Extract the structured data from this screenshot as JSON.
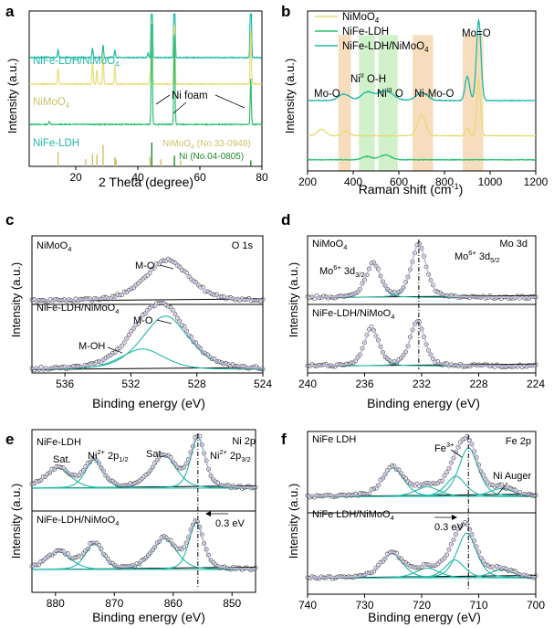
{
  "colors": {
    "teal": "#1fb8a6",
    "yellow": "#e8dc74",
    "green": "#2fbf6e",
    "darkgreen": "#1e8a2a",
    "gold": "#cfc06a",
    "peak": "#c7b8e0",
    "orange_band": "#f5d7b3",
    "green_band": "#c8efc0",
    "circle": "#555555",
    "black": "#000000"
  },
  "chart_data": [
    {
      "id": "a",
      "type": "line",
      "panel_label": "a",
      "xlabel": "2 Theta (degree)",
      "ylabel": "Intensity (a.u.)",
      "xlim": [
        5,
        80
      ],
      "xticks": [
        20,
        40,
        60,
        80
      ],
      "xtick_labels": [
        "20",
        "40",
        "60",
        "80"
      ],
      "series": [
        {
          "name": "NiFe-LDH/NiMoO4",
          "label": "NiFe-LDH/NiMoO",
          "sub": "4",
          "color": "teal",
          "baseline": 0.3,
          "peaks": [
            [
              14.3,
              0.05
            ],
            [
              25.4,
              0.06
            ],
            [
              28.8,
              0.08
            ],
            [
              32.6,
              0.05
            ],
            [
              43.3,
              0.03
            ],
            [
              44.5,
              0.65
            ],
            [
              51.8,
              0.65
            ],
            [
              76.4,
              0.65
            ]
          ]
        },
        {
          "name": "NiMoO4",
          "label": "NiMoO",
          "sub": "4",
          "color": "yellow",
          "baseline": 0.47,
          "peaks": [
            [
              14.3,
              0.1
            ],
            [
              25.4,
              0.14
            ],
            [
              26.8,
              0.09
            ],
            [
              28.8,
              0.2
            ],
            [
              32.6,
              0.12
            ],
            [
              43.9,
              0.06
            ],
            [
              44.5,
              0.4
            ],
            [
              51.8,
              0.4
            ],
            [
              76.4,
              0.35
            ]
          ]
        },
        {
          "name": "NiFe-LDH",
          "label": "NiFe-LDH",
          "sub": "",
          "color": "green",
          "baseline": 0.73,
          "peaks": [
            [
              11.5,
              0.02
            ],
            [
              44.5,
              0.65
            ],
            [
              51.8,
              0.6
            ],
            [
              76.4,
              0.3
            ]
          ]
        }
      ],
      "reference_sticks": [
        {
          "name": "NiMoO4 (No.33-0948)",
          "label": "NiMoO",
          "sub": "4",
          "suffix": " (No.33-0948)",
          "color": "gold",
          "positions": [
            [
              14.3,
              0.6
            ],
            [
              23.2,
              0.3
            ],
            [
              25.4,
              0.5
            ],
            [
              26.8,
              0.5
            ],
            [
              28.8,
              0.9
            ],
            [
              32.6,
              0.4
            ],
            [
              33.0,
              0.3
            ],
            [
              43.9,
              0.4
            ],
            [
              47.4,
              0.3
            ],
            [
              53.8,
              0.25
            ]
          ]
        },
        {
          "name": "Ni (No.04-0805)",
          "label": "Ni (No.04-0805)",
          "sub": "",
          "suffix": "",
          "color": "darkgreen",
          "positions": [
            [
              44.5,
              1.0
            ],
            [
              51.8,
              0.45
            ],
            [
              76.4,
              0.25
            ]
          ]
        }
      ],
      "annotations": [
        {
          "text": "Ni foam"
        }
      ]
    },
    {
      "id": "b",
      "type": "line",
      "panel_label": "b",
      "xlabel": "Raman shift (cm",
      "xlabel_sup": "-1",
      "xlabel_tail": ")",
      "ylabel": "Intensity (a.u.)",
      "xlim": [
        200,
        1200
      ],
      "xticks": [
        200,
        400,
        600,
        800,
        1000,
        1200
      ],
      "xtick_labels": [
        "200",
        "400",
        "600",
        "800",
        "1000",
        "1200"
      ],
      "legend": [
        {
          "label": "NiMoO",
          "sub": "4",
          "color": "yellow"
        },
        {
          "label": "NiFe-LDH",
          "sub": "",
          "color": "green"
        },
        {
          "label": "NiFe-LDH/NiMoO",
          "sub": "4",
          "color": "teal"
        }
      ],
      "series": [
        {
          "name": "NiFe-LDH/NiMoO4",
          "color": "teal",
          "baseline": 0.56,
          "peaks": [
            [
              360,
              0.04,
              25
            ],
            [
              460,
              0.05,
              25
            ],
            [
              540,
              0.06,
              35
            ],
            [
              700,
              0.05,
              25
            ],
            [
              900,
              0.15,
              10
            ],
            [
              950,
              0.5,
              10
            ]
          ]
        },
        {
          "name": "NiMoO4",
          "color": "yellow",
          "baseline": 0.78,
          "peaks": [
            [
              260,
              0.04,
              18
            ],
            [
              370,
              0.03,
              15
            ],
            [
              700,
              0.13,
              18
            ],
            [
              900,
              0.05,
              8
            ],
            [
              950,
              0.35,
              8
            ]
          ]
        },
        {
          "name": "NiFe-LDH",
          "color": "green",
          "baseline": 0.93,
          "peaks": [
            [
              460,
              0.02,
              20
            ],
            [
              540,
              0.03,
              25
            ]
          ]
        }
      ],
      "bands": [
        {
          "x0": 335,
          "x1": 390,
          "color": "orange_band"
        },
        {
          "x0": 425,
          "x1": 495,
          "color": "green_band"
        },
        {
          "x0": 510,
          "x1": 595,
          "color": "green_band"
        },
        {
          "x0": 660,
          "x1": 750,
          "color": "orange_band"
        },
        {
          "x0": 880,
          "x1": 970,
          "color": "orange_band"
        }
      ],
      "annotations": [
        {
          "text": "Mo-O"
        },
        {
          "text": "Ni",
          "tail": " O-H",
          "sup": "II"
        },
        {
          "text": "Ni",
          "tail": " O",
          "sup": "III"
        },
        {
          "text": "Ni-Mo-O"
        },
        {
          "text": "Mo=O"
        }
      ]
    },
    {
      "id": "c",
      "type": "scatter",
      "panel_label": "c",
      "xlabel": "Binding energy (eV)",
      "ylabel": "Intensity (a.u.)",
      "xlim": [
        538,
        524
      ],
      "xticks": [
        536,
        532,
        528,
        524
      ],
      "xtick_labels": [
        "536",
        "532",
        "528",
        "524"
      ],
      "subpanels": [
        {
          "title": "NiMoO",
          "title_sub": "4",
          "corner": "O 1s",
          "baseline": 0.95,
          "components": [
            [
              529.8,
              1.4,
              0.6,
              "teal",
              "M-O"
            ]
          ]
        },
        {
          "title": "NiFe-LDH/NiMoO",
          "title_sub": "4",
          "corner": "",
          "baseline": 0.95,
          "components": [
            [
              529.9,
              1.5,
              0.78,
              "teal",
              "M-O"
            ],
            [
              531.3,
              1.4,
              0.3,
              "teal",
              "M-OH"
            ]
          ]
        }
      ]
    },
    {
      "id": "d",
      "type": "scatter",
      "panel_label": "d",
      "xlabel": "Binding energy (eV)",
      "ylabel": "Intensity (a.u.)",
      "xlim": [
        240,
        224
      ],
      "xticks": [
        240,
        236,
        232,
        228,
        224
      ],
      "xtick_labels": [
        "240",
        "236",
        "232",
        "228",
        "224"
      ],
      "dashline_x": 232.2,
      "peak_labels": [
        {
          "text": "Mo",
          "sup": "6+",
          "mid": " 3d",
          "sub": "3/2"
        },
        {
          "text": "Mo",
          "sup": "6+",
          "mid": " 3d",
          "sub": "5/2"
        }
      ],
      "subpanels": [
        {
          "title": "NiMoO",
          "title_sub": "4",
          "corner": "Mo 3d",
          "baseline": 0.9,
          "components": [
            [
              235.4,
              0.55,
              0.5,
              "teal",
              ""
            ],
            [
              232.2,
              0.55,
              0.78,
              "teal",
              ""
            ]
          ]
        },
        {
          "title": "NiFe-LDH/NiMoO",
          "title_sub": "4",
          "corner": "",
          "baseline": 0.9,
          "components": [
            [
              235.5,
              0.55,
              0.55,
              "teal",
              ""
            ],
            [
              232.3,
              0.55,
              0.66,
              "teal",
              ""
            ]
          ]
        }
      ]
    },
    {
      "id": "e",
      "type": "scatter",
      "panel_label": "e",
      "xlabel": "Binding energy (eV)",
      "ylabel": "Intensity (a.u.)",
      "xlim": [
        884,
        846
      ],
      "xticks": [
        880,
        870,
        860,
        850
      ],
      "xtick_labels": [
        "880",
        "870",
        "860",
        "850"
      ],
      "dashline_x": 855.8,
      "shift_label": "0.3 eV",
      "labels": [
        {
          "text": "Sat.",
          "sup": "",
          "mid": "",
          "sub": ""
        },
        {
          "text": "Ni",
          "sup": "2+",
          "mid": " 2p",
          "sub": "1/2"
        },
        {
          "text": "Sat.",
          "sup": "",
          "mid": "",
          "sub": ""
        },
        {
          "text": "Ni",
          "sup": "2+",
          "mid": " 2p",
          "sub": "3/2"
        }
      ],
      "subpanels": [
        {
          "title": "NiFe-LDH",
          "title_sub": "",
          "corner": "Ni 2p",
          "baseline": 0.72,
          "components": [
            [
              879.5,
              2.2,
              0.25,
              "teal",
              ""
            ],
            [
              873.4,
              1.6,
              0.35,
              "teal",
              ""
            ],
            [
              861.5,
              2.2,
              0.4,
              "teal",
              ""
            ],
            [
              855.8,
              1.3,
              0.62,
              "teal",
              ""
            ]
          ]
        },
        {
          "title": "NiFe-LDH/NiMoO",
          "title_sub": "4",
          "corner": "",
          "baseline": 0.72,
          "components": [
            [
              879.5,
              2.2,
              0.22,
              "teal",
              ""
            ],
            [
              873.4,
              1.6,
              0.32,
              "teal",
              ""
            ],
            [
              861.5,
              2.2,
              0.38,
              "teal",
              ""
            ],
            [
              856.1,
              1.3,
              0.58,
              "teal",
              ""
            ]
          ]
        }
      ]
    },
    {
      "id": "f",
      "type": "scatter",
      "panel_label": "f",
      "xlabel": "Binding energy (eV)",
      "ylabel": "Intensity (a.u.)",
      "xlim": [
        740,
        700
      ],
      "xticks": [
        740,
        730,
        720,
        710,
        700
      ],
      "xtick_labels": [
        "740",
        "730",
        "720",
        "710",
        "700"
      ],
      "dashline_x": 711.8,
      "shift_label": "0.3 eV",
      "labels": [
        {
          "text": "Fe",
          "sup": "3+",
          "mid": "",
          "sub": ""
        },
        {
          "text": "Ni Auger",
          "sup": "",
          "mid": "",
          "sub": ""
        }
      ],
      "subpanels": [
        {
          "title": "NiFe LDH",
          "title_sub": "",
          "corner": "Fe 2p",
          "baseline": 0.8,
          "components": [
            [
              725.0,
              2.0,
              0.35,
              "teal",
              ""
            ],
            [
              719.0,
              2.2,
              0.12,
              "teal",
              ""
            ],
            [
              714.0,
              1.8,
              0.25,
              "teal",
              ""
            ],
            [
              711.8,
              1.8,
              0.6,
              "teal",
              ""
            ],
            [
              706.0,
              2.2,
              0.1,
              "teal",
              ""
            ]
          ]
        },
        {
          "title": "NiFe LDH/NiMoO",
          "title_sub": "4",
          "corner": "",
          "baseline": 0.8,
          "components": [
            [
              725.2,
              2.0,
              0.3,
              "teal",
              ""
            ],
            [
              719.0,
              2.2,
              0.12,
              "teal",
              ""
            ],
            [
              714.2,
              1.8,
              0.22,
              "teal",
              ""
            ],
            [
              712.1,
              1.8,
              0.55,
              "teal",
              ""
            ],
            [
              706.0,
              2.2,
              0.1,
              "teal",
              ""
            ]
          ]
        }
      ]
    }
  ]
}
